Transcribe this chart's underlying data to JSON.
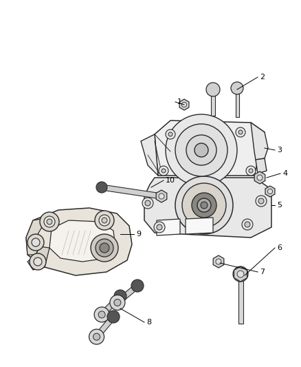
{
  "background_color": "#ffffff",
  "line_color": "#2a2a2a",
  "fill_light": "#f0f0f0",
  "fill_mid": "#e0e0e0",
  "fill_dark": "#c8c8c8",
  "fill_bracket": "#d8d4cc",
  "fill_rubber": "#888888",
  "label_color": "#000000",
  "fig_width": 4.38,
  "fig_height": 5.33,
  "dpi": 100
}
